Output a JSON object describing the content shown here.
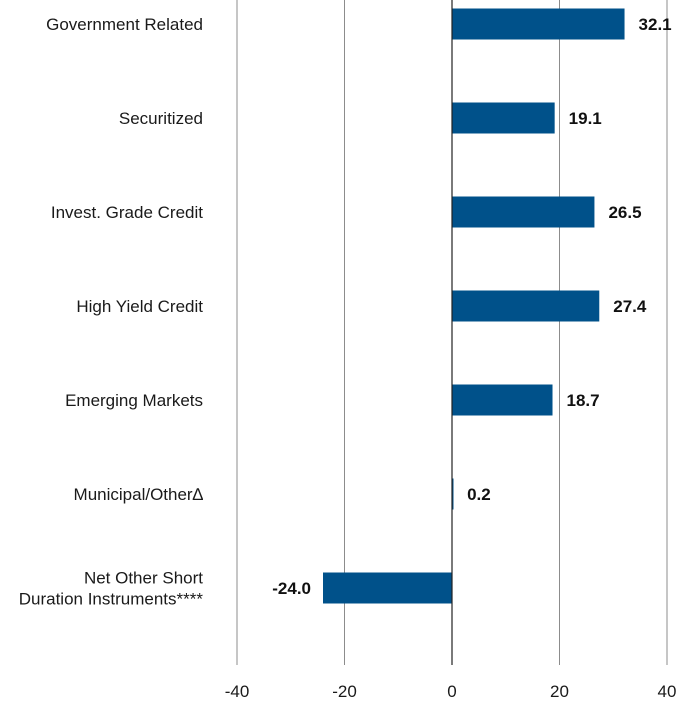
{
  "chart_data": {
    "type": "bar",
    "orientation": "horizontal",
    "categories": [
      [
        "Government Related"
      ],
      [
        "Securitized"
      ],
      [
        "Invest. Grade Credit"
      ],
      [
        "High Yield Credit"
      ],
      [
        "Emerging Markets"
      ],
      [
        "Municipal/Other∆"
      ],
      [
        "Net Other Short",
        "Duration Instruments****"
      ]
    ],
    "values": [
      32.1,
      19.1,
      26.5,
      27.4,
      18.7,
      0.2,
      -24.0
    ],
    "value_labels": [
      "32.1",
      "19.1",
      "26.5",
      "27.4",
      "18.7",
      "0.2",
      "-24.0"
    ],
    "xlim": [
      -40,
      40
    ],
    "xticks": [
      -40,
      -20,
      0,
      20,
      40
    ],
    "xtick_labels": [
      "-40",
      "-20",
      "0",
      "20",
      "40"
    ],
    "grid": "vertical",
    "legend": "none",
    "bar_color": "#00518a",
    "grid_color": "#8c8c8c",
    "zero_line_color": "#222222"
  }
}
